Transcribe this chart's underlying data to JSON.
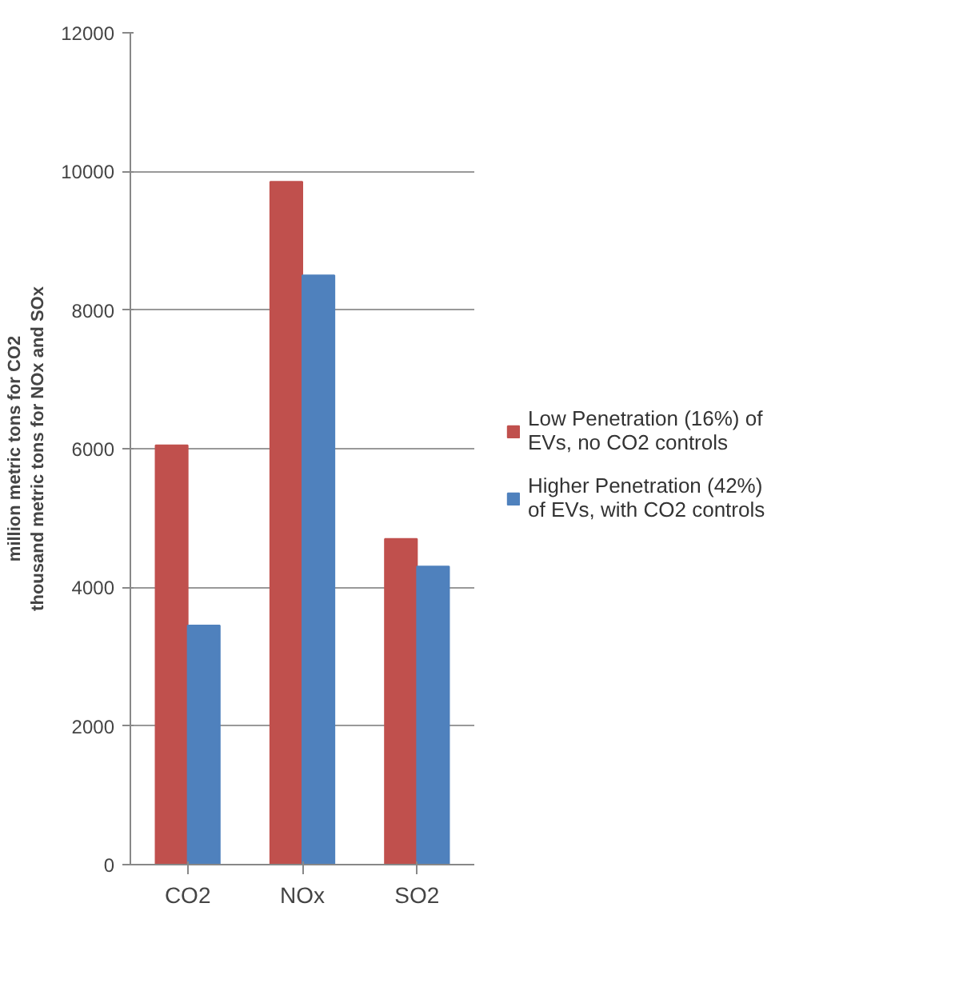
{
  "chart_data": {
    "type": "bar",
    "ylabel": "million metric tons for CO2\nthousand metric tons for NOx and SOx",
    "categories": [
      "CO2",
      "NOx",
      "SO2"
    ],
    "series": [
      {
        "name": "Low Penetration (16%) of EVs, no CO2 controls",
        "color": "#c0504d",
        "values": [
          6050,
          9850,
          4700
        ]
      },
      {
        "name": "Higher Penetration (42%) of EVs, with CO2 controls",
        "color": "#4f81bd",
        "values": [
          3450,
          8500,
          4300
        ]
      }
    ],
    "ylim": [
      0,
      12000
    ],
    "yticks": [
      0,
      2000,
      4000,
      6000,
      8000,
      10000,
      12000
    ],
    "grid": "y",
    "legend": "right"
  }
}
